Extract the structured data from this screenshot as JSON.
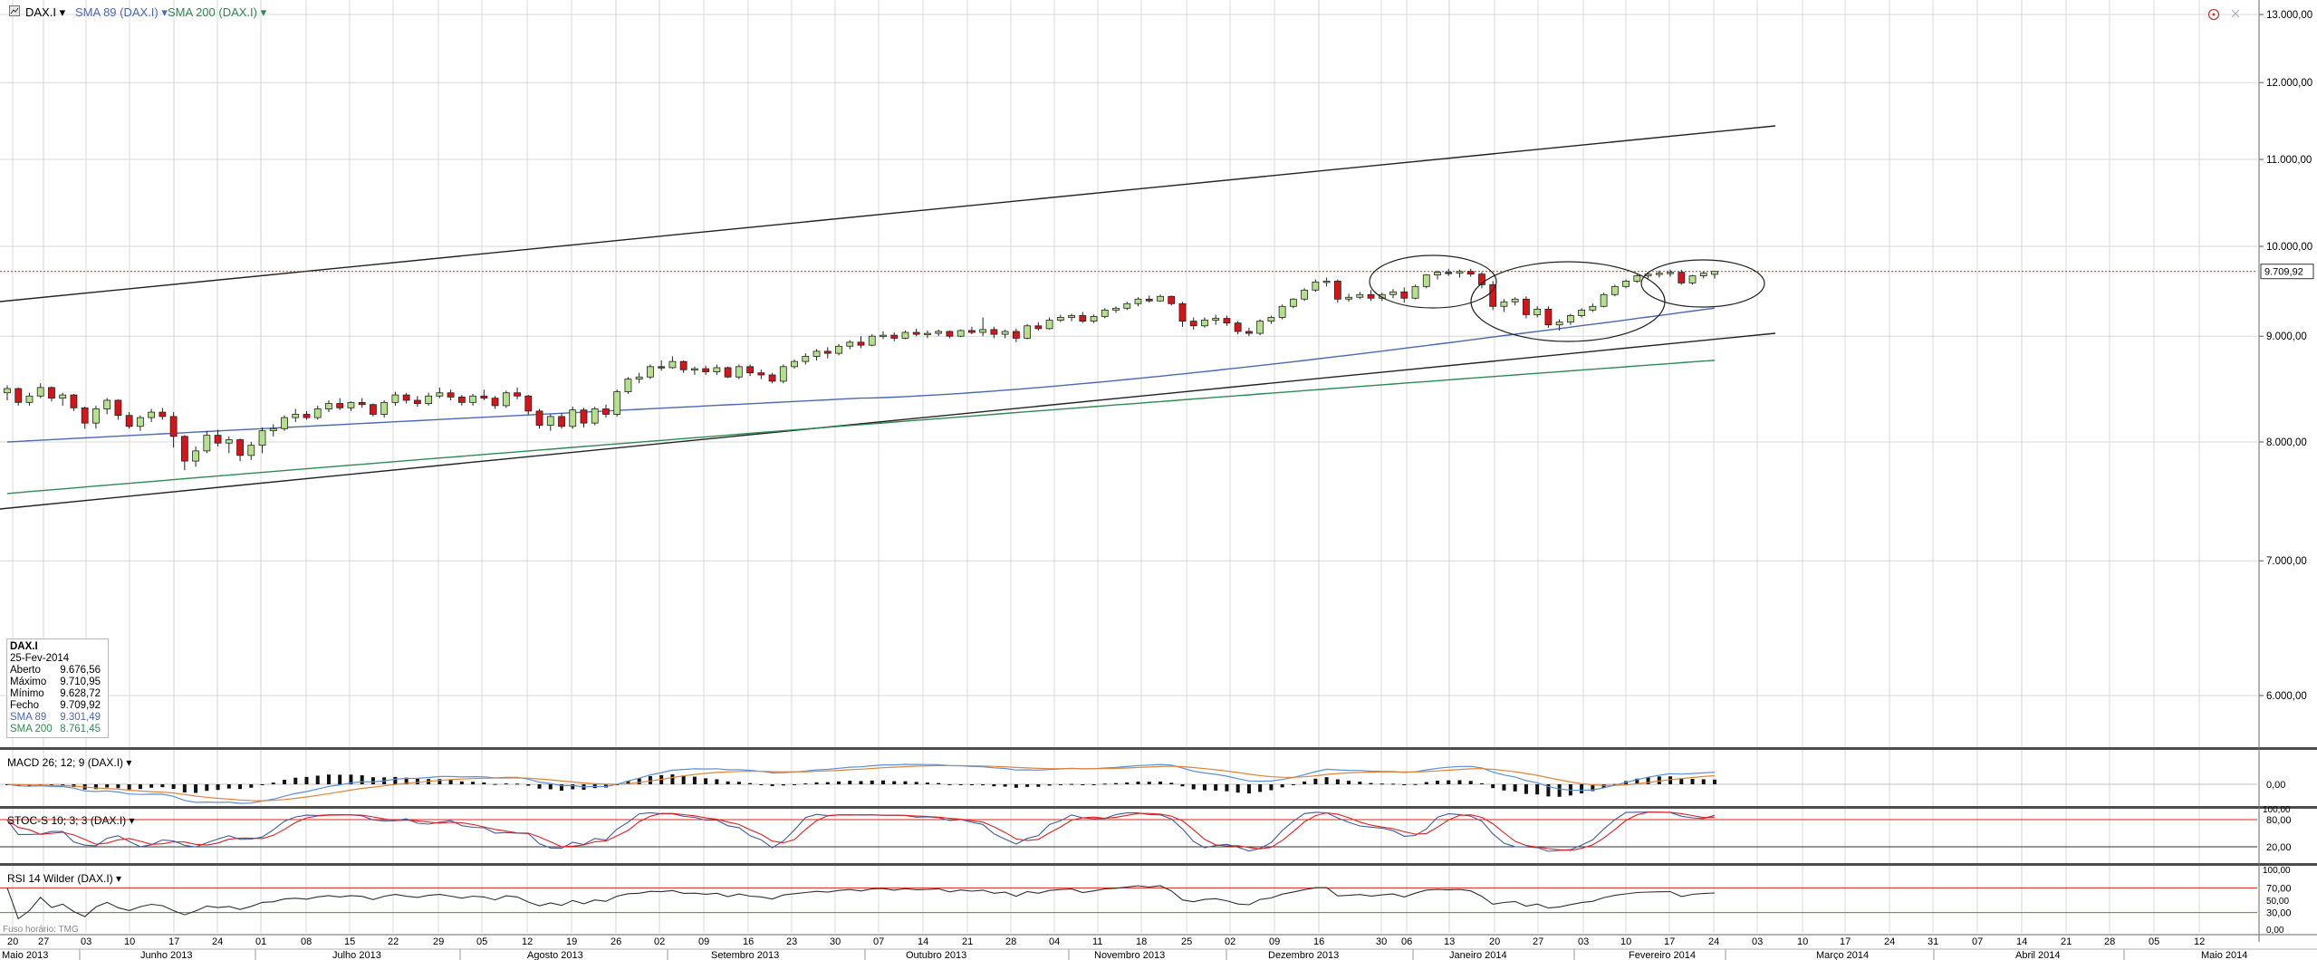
{
  "header": {
    "symbol": "DAX.I",
    "ind1": "SMA 89 (DAX.I)",
    "ind2": "SMA 200 (DAX.I)",
    "caret": "▾"
  },
  "panels": {
    "macd_label": "MACD 26; 12; 9 (DAX.I)",
    "stoch_label": "STOC-S 10; 3; 3 (DAX.I)",
    "rsi_label": "RSI 14 Wilder (DAX.I)",
    "footer_note": "Fuso horário: TMG"
  },
  "info_box": {
    "title": "DAX.I",
    "date": "25-Fev-2014",
    "rows": [
      {
        "k": "Aberto",
        "v": "9.676,56"
      },
      {
        "k": "Máximo",
        "v": "9.710,95"
      },
      {
        "k": "Mínimo",
        "v": "9.628,72"
      },
      {
        "k": "Fecho",
        "v": "9.709,92"
      },
      {
        "k": "SMA 89",
        "v": "9.301,49"
      },
      {
        "k": "SMA 200",
        "v": "8.761,45"
      }
    ]
  },
  "colors": {
    "up": "#b5e08c",
    "down": "#d81418",
    "sma89": "#4a68b6",
    "sma200": "#2f8a52",
    "macd_line": "#5a8fd8",
    "macd_signal": "#e0843a",
    "stoch_k": "#e02020",
    "stoch_d": "#405a9a",
    "rsi": "#303030",
    "ref_red": "#e02020",
    "ref_green": "#2e9e2e",
    "grid": "#d8d8d8"
  },
  "chart_data": {
    "type": "candlestick",
    "symbol": "DAX.I",
    "y_ticks": [
      "13.000,00",
      "12.000,00",
      "11.000,00",
      "10.000,00",
      "9.000,00",
      "8.000,00",
      "7.000,00",
      "6.000,00"
    ],
    "y_range": [
      5800,
      13000
    ],
    "last_price": 9709.92,
    "last_price_label": "9.709,92",
    "x_day_labels": [
      "20",
      "27",
      "03",
      "10",
      "17",
      "24",
      "01",
      "08",
      "15",
      "22",
      "29",
      "05",
      "12",
      "19",
      "26",
      "02",
      "09",
      "16",
      "23",
      "30",
      "07",
      "14",
      "21",
      "28",
      "04",
      "11",
      "18",
      "25",
      "02",
      "09",
      "16",
      "30",
      "06",
      "13",
      "20",
      "27",
      "03",
      "10",
      "17",
      "24",
      "03",
      "10",
      "17",
      "24",
      "31",
      "07",
      "14",
      "21",
      "28",
      "05",
      "12"
    ],
    "x_month_labels": [
      "Maio 2013",
      "Junho 2013",
      "Julho 2013",
      "Agosto 2013",
      "Setembro 2013",
      "Outubro 2013",
      "Novembro 2013",
      "Dezembro 2013",
      "Janeiro 2014",
      "Fevereiro 2014",
      "Março 2014",
      "Abril 2014",
      "Maio 2014"
    ],
    "candles": [
      [
        8450,
        8520,
        8380,
        8490
      ],
      [
        8490,
        8500,
        8330,
        8360
      ],
      [
        8360,
        8450,
        8330,
        8420
      ],
      [
        8420,
        8540,
        8400,
        8500
      ],
      [
        8500,
        8510,
        8370,
        8400
      ],
      [
        8400,
        8450,
        8330,
        8430
      ],
      [
        8430,
        8440,
        8280,
        8310
      ],
      [
        8310,
        8320,
        8120,
        8170
      ],
      [
        8170,
        8330,
        8120,
        8300
      ],
      [
        8300,
        8400,
        8250,
        8380
      ],
      [
        8380,
        8390,
        8200,
        8240
      ],
      [
        8240,
        8270,
        8120,
        8140
      ],
      [
        8140,
        8240,
        8100,
        8220
      ],
      [
        8220,
        8300,
        8180,
        8270
      ],
      [
        8270,
        8310,
        8200,
        8230
      ],
      [
        8230,
        8270,
        7950,
        8050
      ],
      [
        8050,
        8060,
        7750,
        7830
      ],
      [
        7830,
        7960,
        7780,
        7920
      ],
      [
        7920,
        8100,
        7900,
        8060
      ],
      [
        8060,
        8110,
        7960,
        7990
      ],
      [
        7990,
        8050,
        7900,
        8020
      ],
      [
        8020,
        8030,
        7830,
        7880
      ],
      [
        7880,
        8000,
        7840,
        7970
      ],
      [
        7970,
        8130,
        7900,
        8100
      ],
      [
        8100,
        8160,
        8050,
        8120
      ],
      [
        8120,
        8240,
        8100,
        8220
      ],
      [
        8220,
        8300,
        8180,
        8250
      ],
      [
        8250,
        8280,
        8200,
        8220
      ],
      [
        8220,
        8330,
        8200,
        8300
      ],
      [
        8300,
        8380,
        8270,
        8350
      ],
      [
        8350,
        8400,
        8290,
        8310
      ],
      [
        8310,
        8370,
        8280,
        8360
      ],
      [
        8360,
        8400,
        8310,
        8340
      ],
      [
        8340,
        8350,
        8230,
        8250
      ],
      [
        8250,
        8380,
        8220,
        8360
      ],
      [
        8360,
        8460,
        8330,
        8430
      ],
      [
        8430,
        8450,
        8350,
        8380
      ],
      [
        8380,
        8420,
        8320,
        8350
      ],
      [
        8350,
        8450,
        8330,
        8420
      ],
      [
        8420,
        8500,
        8400,
        8450
      ],
      [
        8450,
        8480,
        8380,
        8410
      ],
      [
        8410,
        8430,
        8330,
        8360
      ],
      [
        8360,
        8440,
        8330,
        8420
      ],
      [
        8420,
        8480,
        8380,
        8400
      ],
      [
        8400,
        8420,
        8300,
        8330
      ],
      [
        8330,
        8470,
        8310,
        8450
      ],
      [
        8450,
        8500,
        8390,
        8420
      ],
      [
        8420,
        8430,
        8250,
        8280
      ],
      [
        8280,
        8300,
        8120,
        8150
      ],
      [
        8150,
        8250,
        8100,
        8230
      ],
      [
        8230,
        8260,
        8120,
        8140
      ],
      [
        8140,
        8320,
        8120,
        8290
      ],
      [
        8290,
        8310,
        8130,
        8170
      ],
      [
        8170,
        8320,
        8150,
        8300
      ],
      [
        8300,
        8340,
        8220,
        8250
      ],
      [
        8250,
        8480,
        8230,
        8460
      ],
      [
        8460,
        8600,
        8440,
        8580
      ],
      [
        8580,
        8640,
        8540,
        8600
      ],
      [
        8600,
        8720,
        8580,
        8700
      ],
      [
        8700,
        8760,
        8660,
        8690
      ],
      [
        8690,
        8800,
        8680,
        8750
      ],
      [
        8750,
        8760,
        8640,
        8670
      ],
      [
        8670,
        8700,
        8620,
        8680
      ],
      [
        8680,
        8710,
        8620,
        8650
      ],
      [
        8650,
        8720,
        8620,
        8690
      ],
      [
        8690,
        8700,
        8590,
        8600
      ],
      [
        8600,
        8720,
        8580,
        8700
      ],
      [
        8700,
        8720,
        8610,
        8640
      ],
      [
        8640,
        8670,
        8580,
        8620
      ],
      [
        8620,
        8640,
        8540,
        8560
      ],
      [
        8560,
        8720,
        8540,
        8700
      ],
      [
        8700,
        8770,
        8680,
        8750
      ],
      [
        8750,
        8830,
        8720,
        8800
      ],
      [
        8800,
        8870,
        8760,
        8850
      ],
      [
        8850,
        8890,
        8780,
        8830
      ],
      [
        8830,
        8920,
        8810,
        8900
      ],
      [
        8900,
        8960,
        8870,
        8940
      ],
      [
        8940,
        9000,
        8880,
        8910
      ],
      [
        8910,
        9020,
        8900,
        9000
      ],
      [
        9000,
        9050,
        8970,
        9010
      ],
      [
        9010,
        9040,
        8950,
        8980
      ],
      [
        8980,
        9060,
        8970,
        9040
      ],
      [
        9040,
        9080,
        9000,
        9020
      ],
      [
        9020,
        9060,
        8980,
        9030
      ],
      [
        9030,
        9070,
        9000,
        9050
      ],
      [
        9050,
        9060,
        8980,
        9000
      ],
      [
        9000,
        9070,
        8990,
        9060
      ],
      [
        9060,
        9100,
        9020,
        9040
      ],
      [
        9040,
        9200,
        9000,
        9070
      ],
      [
        9070,
        9100,
        8980,
        9020
      ],
      [
        9020,
        9070,
        8980,
        9050
      ],
      [
        9050,
        9080,
        8940,
        8980
      ],
      [
        8980,
        9130,
        8970,
        9110
      ],
      [
        9110,
        9150,
        9060,
        9080
      ],
      [
        9080,
        9200,
        9070,
        9170
      ],
      [
        9170,
        9230,
        9150,
        9200
      ],
      [
        9200,
        9240,
        9160,
        9220
      ],
      [
        9220,
        9260,
        9140,
        9160
      ],
      [
        9160,
        9230,
        9140,
        9210
      ],
      [
        9210,
        9300,
        9190,
        9280
      ],
      [
        9280,
        9320,
        9250,
        9300
      ],
      [
        9300,
        9370,
        9280,
        9350
      ],
      [
        9350,
        9420,
        9320,
        9400
      ],
      [
        9400,
        9440,
        9360,
        9380
      ],
      [
        9380,
        9450,
        9370,
        9430
      ],
      [
        9430,
        9440,
        9330,
        9350
      ],
      [
        9350,
        9370,
        9100,
        9160
      ],
      [
        9160,
        9200,
        9070,
        9110
      ],
      [
        9110,
        9200,
        9090,
        9170
      ],
      [
        9170,
        9230,
        9120,
        9190
      ],
      [
        9190,
        9220,
        9110,
        9140
      ],
      [
        9140,
        9160,
        9020,
        9050
      ],
      [
        9050,
        9090,
        9000,
        9030
      ],
      [
        9030,
        9180,
        9010,
        9160
      ],
      [
        9160,
        9220,
        9130,
        9200
      ],
      [
        9200,
        9340,
        9180,
        9320
      ],
      [
        9320,
        9410,
        9300,
        9400
      ],
      [
        9400,
        9520,
        9380,
        9500
      ],
      [
        9500,
        9620,
        9480,
        9590
      ],
      [
        9590,
        9640,
        9540,
        9600
      ],
      [
        9600,
        9620,
        9360,
        9400
      ],
      [
        9400,
        9460,
        9370,
        9420
      ],
      [
        9420,
        9480,
        9400,
        9450
      ],
      [
        9450,
        9500,
        9380,
        9410
      ],
      [
        9410,
        9470,
        9380,
        9450
      ],
      [
        9450,
        9510,
        9410,
        9480
      ],
      [
        9480,
        9530,
        9360,
        9410
      ],
      [
        9410,
        9560,
        9400,
        9540
      ],
      [
        9540,
        9680,
        9520,
        9670
      ],
      [
        9670,
        9720,
        9620,
        9700
      ],
      [
        9700,
        9740,
        9660,
        9690
      ],
      [
        9690,
        9730,
        9640,
        9710
      ],
      [
        9710,
        9740,
        9650,
        9680
      ],
      [
        9680,
        9700,
        9520,
        9560
      ],
      [
        9560,
        9600,
        9280,
        9320
      ],
      [
        9320,
        9400,
        9260,
        9370
      ],
      [
        9370,
        9420,
        9330,
        9400
      ],
      [
        9400,
        9430,
        9190,
        9230
      ],
      [
        9230,
        9320,
        9200,
        9290
      ],
      [
        9290,
        9320,
        9090,
        9120
      ],
      [
        9120,
        9180,
        9060,
        9150
      ],
      [
        9150,
        9240,
        9120,
        9220
      ],
      [
        9220,
        9300,
        9200,
        9280
      ],
      [
        9280,
        9350,
        9260,
        9320
      ],
      [
        9320,
        9470,
        9310,
        9450
      ],
      [
        9450,
        9560,
        9430,
        9540
      ],
      [
        9540,
        9620,
        9520,
        9600
      ],
      [
        9600,
        9680,
        9580,
        9660
      ],
      [
        9660,
        9700,
        9630,
        9680
      ],
      [
        9680,
        9720,
        9640,
        9690
      ],
      [
        9690,
        9730,
        9650,
        9700
      ],
      [
        9700,
        9730,
        9560,
        9580
      ],
      [
        9580,
        9670,
        9560,
        9660
      ],
      [
        9660,
        9710,
        9630,
        9690
      ],
      [
        9677,
        9711,
        9629,
        9710
      ]
    ],
    "sma89": {
      "start": 8000,
      "mid": 8400,
      "end": 9301.49
    },
    "sma200": {
      "start": 7550,
      "end": 8761.45
    },
    "indicators": {
      "macd": {
        "zero_label": "0,00"
      },
      "stoch": {
        "levels": [
          80,
          20
        ],
        "labels": [
          "80,00",
          "20,00"
        ],
        "top_label": "100,00"
      },
      "rsi": {
        "levels": [
          70,
          30
        ],
        "labels": [
          "70,00",
          "30,00"
        ],
        "top_label": "100,00",
        "mid_label": "50,00",
        "bottom_label": "0,00"
      }
    }
  }
}
